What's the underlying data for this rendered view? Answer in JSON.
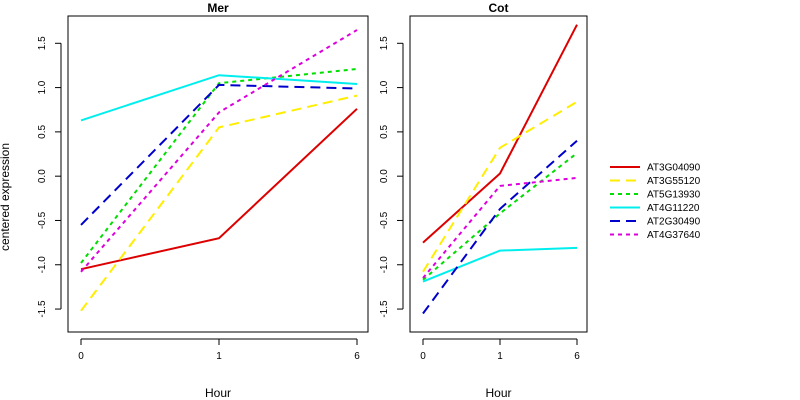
{
  "figure": {
    "ylabel": "centered expression",
    "xlabel": "Hour"
  },
  "chart_data": [
    {
      "type": "line",
      "title": "Mer",
      "xlabel": "Hour",
      "ylabel": "centered expression",
      "categories": [
        "0",
        "1",
        "6"
      ],
      "ylim": [
        -1.5,
        1.5
      ],
      "yticks": [
        -1.5,
        -1.0,
        -0.5,
        0.0,
        0.5,
        1.0,
        1.5
      ],
      "grid": false,
      "series": [
        {
          "name": "AT3G04090",
          "color": "#dd0000",
          "dash": "solid",
          "values": [
            -1.05,
            -0.7,
            0.76
          ]
        },
        {
          "name": "AT3G55120",
          "color": "#ffee00",
          "dash": "long",
          "values": [
            -1.52,
            0.55,
            0.91
          ]
        },
        {
          "name": "AT5G13930",
          "color": "#00dd00",
          "dash": "short",
          "values": [
            -0.98,
            1.05,
            1.21
          ]
        },
        {
          "name": "AT4G11220",
          "color": "#00eeee",
          "dash": "solid",
          "values": [
            0.63,
            1.14,
            1.04
          ]
        },
        {
          "name": "AT2G30490",
          "color": "#0000cc",
          "dash": "long",
          "values": [
            -0.55,
            1.03,
            0.99
          ]
        },
        {
          "name": "AT4G37640",
          "color": "#dd00dd",
          "dash": "short",
          "values": [
            -1.08,
            0.72,
            1.65
          ]
        }
      ]
    },
    {
      "type": "line",
      "title": "Cot",
      "xlabel": "Hour",
      "ylabel": "centered expression",
      "categories": [
        "0",
        "1",
        "6"
      ],
      "ylim": [
        -1.5,
        1.5
      ],
      "yticks": [
        -1.5,
        -1.0,
        -0.5,
        0.0,
        0.5,
        1.0,
        1.5
      ],
      "grid": false,
      "series": [
        {
          "name": "AT3G04090",
          "color": "#dd0000",
          "dash": "solid",
          "values": [
            -0.75,
            0.03,
            1.71
          ]
        },
        {
          "name": "AT3G55120",
          "color": "#ffee00",
          "dash": "long",
          "values": [
            -1.08,
            0.32,
            0.84
          ]
        },
        {
          "name": "AT5G13930",
          "color": "#00dd00",
          "dash": "short",
          "values": [
            -1.17,
            -0.42,
            0.26
          ]
        },
        {
          "name": "AT4G11220",
          "color": "#00eeee",
          "dash": "solid",
          "values": [
            -1.19,
            -0.84,
            -0.81
          ]
        },
        {
          "name": "AT2G30490",
          "color": "#0000cc",
          "dash": "long",
          "values": [
            -1.55,
            -0.37,
            0.4
          ]
        },
        {
          "name": "AT4G37640",
          "color": "#dd00dd",
          "dash": "short",
          "values": [
            -1.15,
            -0.11,
            -0.02
          ]
        }
      ]
    }
  ],
  "legend": {
    "placement": "right",
    "items": [
      {
        "name": "AT3G04090",
        "color": "#dd0000",
        "dash": "solid"
      },
      {
        "name": "AT3G55120",
        "color": "#ffee00",
        "dash": "long"
      },
      {
        "name": "AT5G13930",
        "color": "#00dd00",
        "dash": "short"
      },
      {
        "name": "AT4G11220",
        "color": "#00eeee",
        "dash": "solid"
      },
      {
        "name": "AT2G30490",
        "color": "#0000cc",
        "dash": "long"
      },
      {
        "name": "AT4G37640",
        "color": "#dd00dd",
        "dash": "short"
      }
    ]
  }
}
